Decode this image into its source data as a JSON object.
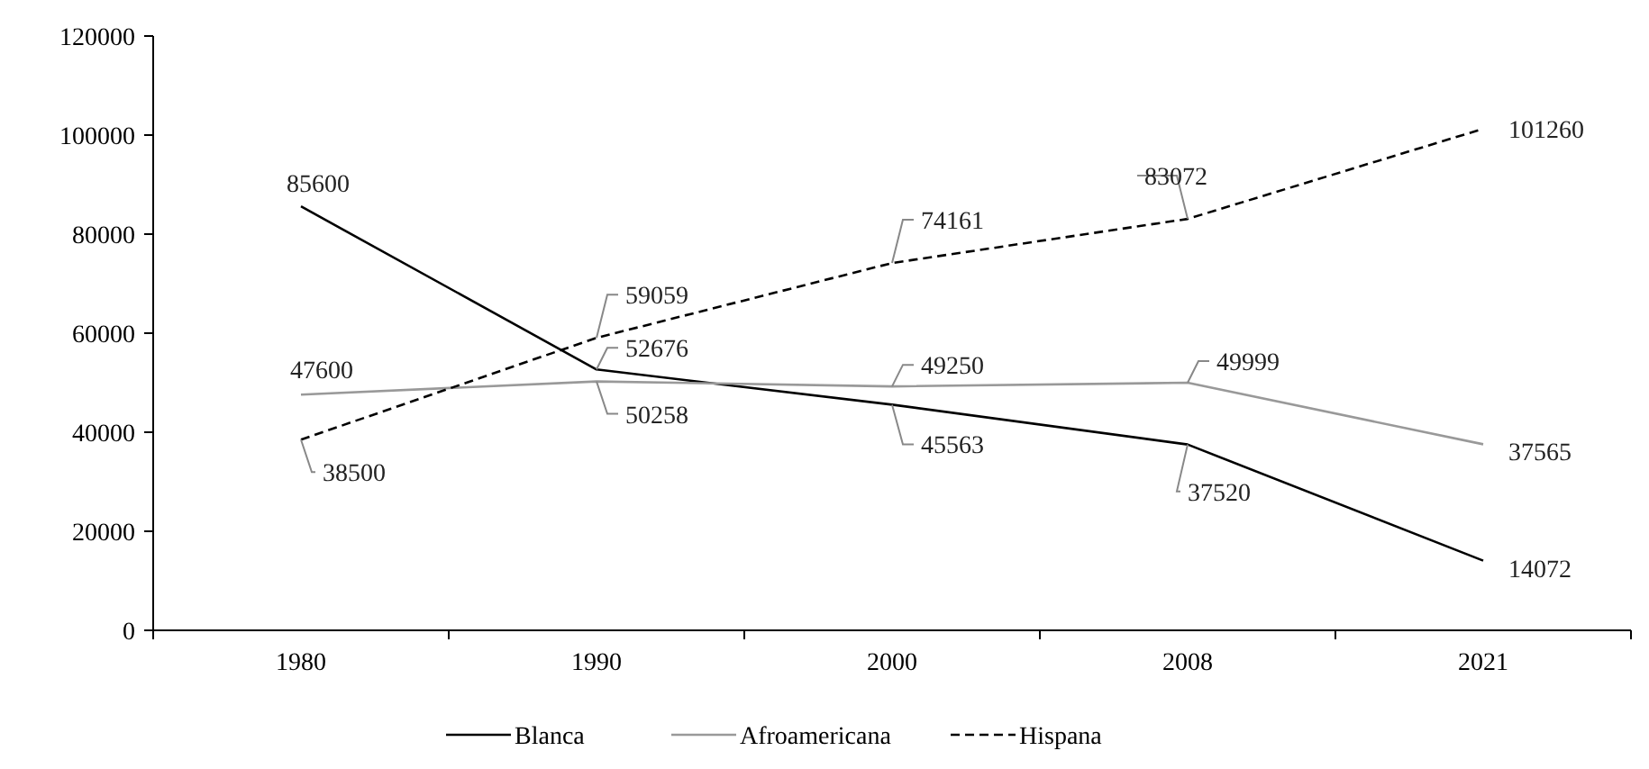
{
  "chart_data": {
    "type": "line",
    "categories": [
      "1980",
      "1990",
      "2000",
      "2008",
      "2021"
    ],
    "series": [
      {
        "name": "Blanca",
        "color": "#000000",
        "line_style": "solid",
        "values": [
          85600,
          52676,
          45563,
          37520,
          14072
        ]
      },
      {
        "name": "Afroamericana",
        "color": "#999999",
        "line_style": "solid",
        "values": [
          47600,
          50258,
          49250,
          49999,
          37565
        ]
      },
      {
        "name": "Hispana",
        "color": "#000000",
        "line_style": "dashed",
        "values": [
          38500,
          59059,
          74161,
          83072,
          101260
        ]
      }
    ],
    "ylim": [
      0,
      120000
    ],
    "yticks": [
      0,
      20000,
      40000,
      60000,
      80000,
      100000,
      120000
    ],
    "grid": false,
    "legend": "bottom",
    "marker": "none",
    "data_labels": true
  }
}
